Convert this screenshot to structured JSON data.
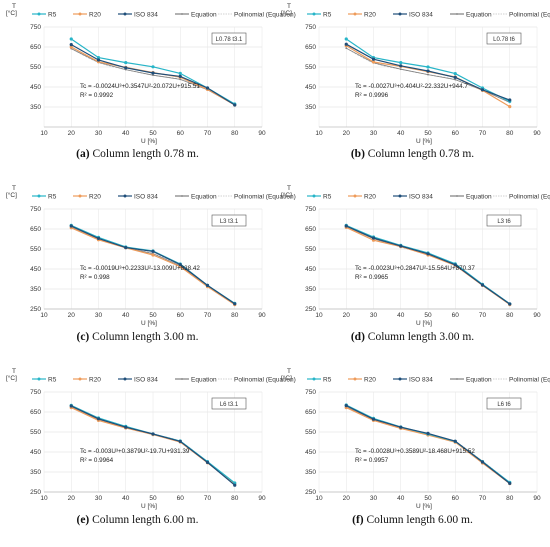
{
  "figure": {
    "legend_labels": [
      "R5",
      "R20",
      "ISO 834",
      "Equation",
      "Polinomial (Equation)"
    ],
    "series_colors": {
      "R5": "#27b5c8",
      "R20": "#ee9b5a",
      "ISO 834": "#1f4e79",
      "Equation": "#7f7f7f",
      "Polinomial (Equation)": "#c3c3c3"
    },
    "ylabel_line1": "T",
    "ylabel_line2": "[°C]",
    "xlabel": "U [%]"
  },
  "panels": [
    {
      "letter": "(a)",
      "caption_text": "Column length 0.78 m.",
      "box_label": "L0.78 t3.1",
      "eq_line1": "Tc = -0.0024U³+0.3547U²-20.072U+915.51",
      "eq_line2": "R² = 0.9992"
    },
    {
      "letter": "(b)",
      "caption_text": "Column length 0.78 m.",
      "box_label": "L0.78 t6",
      "eq_line1": "Tc = -0.0027U³+0.404U²-22.332U+944.7",
      "eq_line2": "R² = 0.9996"
    },
    {
      "letter": "(c)",
      "caption_text": "Column length 3.00 m.",
      "box_label": "L3 t3.1",
      "eq_line1": "Tc = -0.0019U³+0.2233U²-13.009U+838.42",
      "eq_line2": "R² = 0.998"
    },
    {
      "letter": "(d)",
      "caption_text": "Column length 3.00 m.",
      "box_label": "L3 t6",
      "eq_line1": "Tc = -0.0023U³+0.2847U²-15.564U+870.37",
      "eq_line2": "R² = 0.9965"
    },
    {
      "letter": "(e)",
      "caption_text": "Column length 6.00 m.",
      "box_label": "L6 t3.1",
      "eq_line1": "Tc = -0.003U³+0.3879U²-19.7U+931.39",
      "eq_line2": "R² = 0.9964"
    },
    {
      "letter": "(f)",
      "caption_text": "Column length 6.00 m.",
      "box_label": "L6 t6",
      "eq_line1": "Tc = -0.0028U³+0.3589U²-18.468U+915.52",
      "eq_line2": "R² = 0.9957"
    }
  ],
  "chart_data": [
    {
      "type": "line",
      "x": [
        20,
        30,
        40,
        50,
        60,
        70,
        80
      ],
      "xlim": [
        10,
        90
      ],
      "xticks": [
        10,
        20,
        30,
        40,
        50,
        60,
        70,
        80,
        90
      ],
      "ylim": [
        250,
        750
      ],
      "yticks": [
        350,
        450,
        550,
        650,
        750
      ],
      "series": [
        {
          "name": "R5",
          "values": [
            690,
            597,
            572,
            551,
            518,
            445,
            365
          ]
        },
        {
          "name": "R20",
          "values": [
            650,
            576,
            548,
            522,
            499,
            438,
            360
          ]
        },
        {
          "name": "ISO 834",
          "values": [
            662,
            585,
            546,
            520,
            503,
            445,
            360
          ]
        },
        {
          "name": "Equation",
          "values": [
            642,
            573,
            537,
            509,
            488,
            436,
            360
          ]
        }
      ]
    },
    {
      "type": "line",
      "x": [
        20,
        30,
        40,
        50,
        60,
        70,
        80
      ],
      "xlim": [
        10,
        90
      ],
      "xticks": [
        10,
        20,
        30,
        40,
        50,
        60,
        70,
        80,
        90
      ],
      "ylim": [
        250,
        750
      ],
      "yticks": [
        350,
        450,
        550,
        650,
        750
      ],
      "series": [
        {
          "name": "R5",
          "values": [
            690,
            597,
            572,
            550,
            517,
            445,
            378
          ]
        },
        {
          "name": "R20",
          "values": [
            657,
            575,
            553,
            527,
            500,
            433,
            352
          ]
        },
        {
          "name": "ISO 834",
          "values": [
            664,
            589,
            556,
            530,
            498,
            436,
            385
          ]
        },
        {
          "name": "Equation",
          "values": [
            644,
            571,
            539,
            512,
            487,
            434,
            373
          ]
        }
      ]
    },
    {
      "type": "line",
      "x": [
        20,
        30,
        40,
        50,
        60,
        70,
        80
      ],
      "xlim": [
        10,
        90
      ],
      "xticks": [
        10,
        20,
        30,
        40,
        50,
        60,
        70,
        80,
        90
      ],
      "ylim": [
        250,
        750
      ],
      "yticks": [
        250,
        350,
        450,
        550,
        650,
        750
      ],
      "series": [
        {
          "name": "R5",
          "values": [
            668,
            608,
            560,
            540,
            475,
            368,
            278
          ]
        },
        {
          "name": "R20",
          "values": [
            656,
            596,
            556,
            520,
            462,
            362,
            272
          ]
        },
        {
          "name": "ISO 834",
          "values": [
            665,
            603,
            557,
            538,
            472,
            368,
            276
          ]
        },
        {
          "name": "Equation",
          "values": [
            660,
            601,
            556,
            527,
            466,
            365,
            274
          ]
        }
      ]
    },
    {
      "type": "line",
      "x": [
        20,
        30,
        40,
        50,
        60,
        70,
        80
      ],
      "xlim": [
        10,
        90
      ],
      "xticks": [
        10,
        20,
        30,
        40,
        50,
        60,
        70,
        80,
        90
      ],
      "ylim": [
        250,
        750
      ],
      "yticks": [
        250,
        350,
        450,
        550,
        650,
        750
      ],
      "series": [
        {
          "name": "R5",
          "values": [
            668,
            610,
            568,
            530,
            476,
            373,
            276
          ]
        },
        {
          "name": "R20",
          "values": [
            658,
            594,
            562,
            520,
            468,
            368,
            272
          ]
        },
        {
          "name": "ISO 834",
          "values": [
            665,
            605,
            565,
            526,
            471,
            370,
            275
          ]
        },
        {
          "name": "Equation",
          "values": [
            662,
            602,
            561,
            522,
            470,
            373,
            276
          ]
        }
      ]
    },
    {
      "type": "line",
      "x": [
        20,
        30,
        40,
        50,
        60,
        70,
        80
      ],
      "xlim": [
        10,
        90
      ],
      "xticks": [
        10,
        20,
        30,
        40,
        50,
        60,
        70,
        80,
        90
      ],
      "ylim": [
        250,
        750
      ],
      "yticks": [
        250,
        350,
        450,
        550,
        650,
        750
      ],
      "series": [
        {
          "name": "R5",
          "values": [
            683,
            620,
            578,
            540,
            505,
            402,
            295
          ]
        },
        {
          "name": "R20",
          "values": [
            672,
            608,
            570,
            537,
            500,
            396,
            290
          ]
        },
        {
          "name": "ISO 834",
          "values": [
            680,
            616,
            574,
            540,
            503,
            398,
            284
          ]
        },
        {
          "name": "Equation",
          "values": [
            676,
            613,
            572,
            538,
            502,
            398,
            290
          ]
        }
      ]
    },
    {
      "type": "line",
      "x": [
        20,
        30,
        40,
        50,
        60,
        70,
        80
      ],
      "xlim": [
        10,
        90
      ],
      "xticks": [
        10,
        20,
        30,
        40,
        50,
        60,
        70,
        80,
        90
      ],
      "ylim": [
        250,
        750
      ],
      "yticks": [
        250,
        350,
        450,
        550,
        650,
        750
      ],
      "series": [
        {
          "name": "R5",
          "values": [
            685,
            618,
            575,
            540,
            503,
            402,
            298
          ]
        },
        {
          "name": "R20",
          "values": [
            672,
            608,
            568,
            535,
            499,
            395,
            292
          ]
        },
        {
          "name": "ISO 834",
          "values": [
            682,
            614,
            574,
            543,
            504,
            400,
            293
          ]
        },
        {
          "name": "Equation",
          "values": [
            676,
            612,
            572,
            538,
            500,
            404,
            296
          ]
        }
      ]
    }
  ]
}
